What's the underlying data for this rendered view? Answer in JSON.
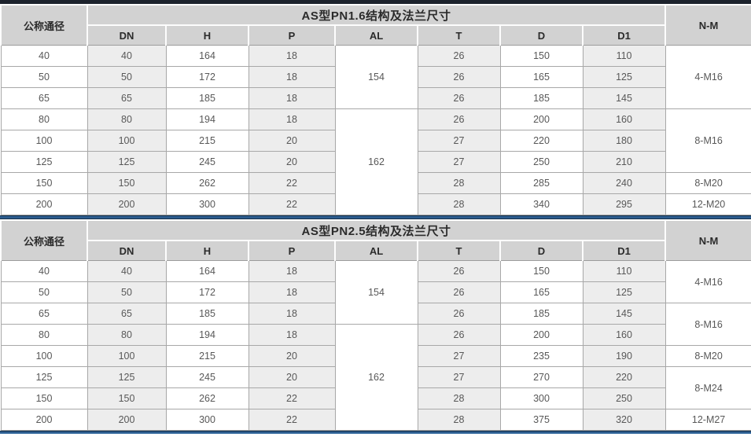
{
  "colors": {
    "top_bar": "#1c222c",
    "accent_blue": "#2c5c8e",
    "header_bg": "#d2d2d2",
    "shaded_column_bg": "#ededed"
  },
  "tables": [
    {
      "title": "AS型PN1.6结构及法兰尺寸",
      "corner_header": "公称通径",
      "nm_header": "N-M",
      "sub_headers": [
        "DN",
        "H",
        "P",
        "AL",
        "T",
        "D",
        "D1"
      ],
      "rows": [
        {
          "nominal": "40",
          "dn": "40",
          "h": "164",
          "p": "18",
          "t": "26",
          "d": "150",
          "d1": "110"
        },
        {
          "nominal": "50",
          "dn": "50",
          "h": "172",
          "p": "18",
          "t": "26",
          "d": "165",
          "d1": "125"
        },
        {
          "nominal": "65",
          "dn": "65",
          "h": "185",
          "p": "18",
          "t": "26",
          "d": "185",
          "d1": "145"
        },
        {
          "nominal": "80",
          "dn": "80",
          "h": "194",
          "p": "18",
          "t": "26",
          "d": "200",
          "d1": "160"
        },
        {
          "nominal": "100",
          "dn": "100",
          "h": "215",
          "p": "20",
          "t": "27",
          "d": "220",
          "d1": "180"
        },
        {
          "nominal": "125",
          "dn": "125",
          "h": "245",
          "p": "20",
          "t": "27",
          "d": "250",
          "d1": "210"
        },
        {
          "nominal": "150",
          "dn": "150",
          "h": "262",
          "p": "22",
          "t": "28",
          "d": "285",
          "d1": "240"
        },
        {
          "nominal": "200",
          "dn": "200",
          "h": "300",
          "p": "22",
          "t": "28",
          "d": "340",
          "d1": "295"
        }
      ],
      "al_groups": [
        {
          "value": "154",
          "span": 3
        },
        {
          "value": "162",
          "span": 5
        }
      ],
      "nm_groups": [
        {
          "value": "4-M16",
          "span": 3
        },
        {
          "value": "8-M16",
          "span": 3
        },
        {
          "value": "8-M20",
          "span": 1
        },
        {
          "value": "12-M20",
          "span": 1
        }
      ]
    },
    {
      "title": "AS型PN2.5结构及法兰尺寸",
      "corner_header": "公称通径",
      "nm_header": "N-M",
      "sub_headers": [
        "DN",
        "H",
        "P",
        "AL",
        "T",
        "D",
        "D1"
      ],
      "rows": [
        {
          "nominal": "40",
          "dn": "40",
          "h": "164",
          "p": "18",
          "t": "26",
          "d": "150",
          "d1": "110"
        },
        {
          "nominal": "50",
          "dn": "50",
          "h": "172",
          "p": "18",
          "t": "26",
          "d": "165",
          "d1": "125"
        },
        {
          "nominal": "65",
          "dn": "65",
          "h": "185",
          "p": "18",
          "t": "26",
          "d": "185",
          "d1": "145"
        },
        {
          "nominal": "80",
          "dn": "80",
          "h": "194",
          "p": "18",
          "t": "26",
          "d": "200",
          "d1": "160"
        },
        {
          "nominal": "100",
          "dn": "100",
          "h": "215",
          "p": "20",
          "t": "27",
          "d": "235",
          "d1": "190"
        },
        {
          "nominal": "125",
          "dn": "125",
          "h": "245",
          "p": "20",
          "t": "27",
          "d": "270",
          "d1": "220"
        },
        {
          "nominal": "150",
          "dn": "150",
          "h": "262",
          "p": "22",
          "t": "28",
          "d": "300",
          "d1": "250"
        },
        {
          "nominal": "200",
          "dn": "200",
          "h": "300",
          "p": "22",
          "t": "28",
          "d": "375",
          "d1": "320"
        }
      ],
      "al_groups": [
        {
          "value": "154",
          "span": 3
        },
        {
          "value": "162",
          "span": 5
        }
      ],
      "nm_groups": [
        {
          "value": "4-M16",
          "span": 2
        },
        {
          "value": "8-M16",
          "span": 2
        },
        {
          "value": "8-M20",
          "span": 1
        },
        {
          "value": "8-M24",
          "span": 2
        },
        {
          "value": "12-M27",
          "span": 1
        }
      ]
    }
  ]
}
